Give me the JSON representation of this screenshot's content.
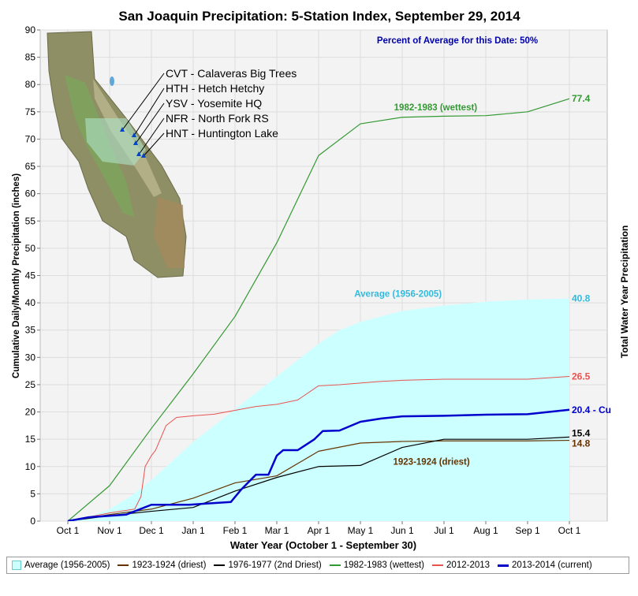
{
  "chart_data": {
    "type": "line",
    "title": "San Joaquin Precipitation: 5-Station Index, September 29, 2014",
    "subtitle": "Percent of Average for this Date: 50%",
    "xlabel": "Water Year (October 1 - September 30)",
    "ylabel": "Cumulative Daily/Monthly Precipitation (inches)",
    "ylabel_right": "Total Water Year Precipitation",
    "ylim": [
      0,
      90
    ],
    "yticks": [
      0,
      5,
      10,
      15,
      20,
      25,
      30,
      35,
      40,
      45,
      50,
      55,
      60,
      65,
      70,
      75,
      80,
      85,
      90
    ],
    "x_ticklabels": [
      "Oct 1",
      "Nov 1",
      "Dec 1",
      "Jan 1",
      "Feb 1",
      "Mar 1",
      "Apr 1",
      "May 1",
      "Jun 1",
      "Jul 1",
      "Aug 1",
      "Sep 1",
      "Oct 1"
    ],
    "grid": true,
    "legend_position": "bottom",
    "series": [
      {
        "name": "Average (1956-2005)",
        "kind": "area",
        "color": "#ccffff",
        "label_color": "#33bbdd",
        "x": [
          0,
          0.5,
          1,
          1.5,
          2,
          2.5,
          3,
          3.5,
          4,
          4.5,
          5,
          5.5,
          6,
          6.5,
          7,
          7.5,
          8,
          9,
          10,
          11,
          12
        ],
        "y": [
          0,
          0.8,
          2.2,
          4.5,
          7.5,
          11,
          14.5,
          17.5,
          20.5,
          23.5,
          26.5,
          29.5,
          32.5,
          35,
          36.5,
          37.5,
          38.5,
          39.5,
          40.2,
          40.6,
          40.8
        ],
        "end_label": "40.8",
        "annotation": "Average (1956-2005)"
      },
      {
        "name": "1923-1924 (driest)",
        "kind": "line",
        "color": "#663300",
        "width": 1.2,
        "x": [
          0,
          1,
          2,
          3,
          4,
          5,
          6,
          7,
          8,
          9,
          10,
          11,
          12
        ],
        "y": [
          0,
          1.2,
          2.2,
          4.2,
          7,
          8.3,
          12.8,
          14.3,
          14.6,
          14.7,
          14.7,
          14.7,
          14.8
        ],
        "end_label": "14.8",
        "annotation": "1923-1924 (driest)"
      },
      {
        "name": "1976-1977 (2nd Driest)",
        "kind": "line",
        "color": "#000000",
        "width": 1.2,
        "x": [
          0,
          1,
          2,
          3,
          4,
          5,
          6,
          7,
          8,
          9,
          10,
          11,
          12
        ],
        "y": [
          0,
          1,
          1.8,
          2.5,
          5.5,
          8,
          10,
          10.2,
          13.5,
          15,
          15,
          15,
          15.4
        ],
        "end_label": "15.4",
        "annotation": ""
      },
      {
        "name": "1982-1983 (wettest)",
        "kind": "line",
        "color": "#339933",
        "width": 1.2,
        "x": [
          0,
          1,
          2,
          3,
          4,
          5,
          6,
          7,
          8,
          9,
          10,
          11,
          12
        ],
        "y": [
          0,
          6.5,
          17,
          27,
          37.5,
          51,
          67,
          72.8,
          74,
          74.2,
          74.3,
          75,
          77.4
        ],
        "end_label": "77.4",
        "annotation": "1982-1983 (wettest)"
      },
      {
        "name": "2012-2013",
        "kind": "line",
        "color": "#e8524f",
        "width": 1,
        "x": [
          0,
          1,
          1.6,
          1.75,
          1.85,
          2,
          2.1,
          2.35,
          2.6,
          3,
          3.5,
          4,
          4.5,
          5,
          5.5,
          6,
          6.5,
          7,
          7.5,
          8,
          9,
          10,
          11,
          12
        ],
        "y": [
          0,
          1.5,
          2.2,
          4.5,
          10,
          12,
          13,
          17.5,
          19,
          19.3,
          19.6,
          20.3,
          21,
          21.4,
          22.2,
          24.8,
          25,
          25.3,
          25.6,
          25.8,
          26,
          26,
          26,
          26.5
        ],
        "end_label": "26.5",
        "annotation": ""
      },
      {
        "name": "2013-2014 (current)",
        "kind": "line",
        "color": "#0000cc",
        "width": 2.5,
        "x": [
          0,
          0.5,
          1.4,
          1.6,
          2,
          2.9,
          3.9,
          4.15,
          4.5,
          4.8,
          5,
          5.15,
          5.5,
          5.9,
          6.1,
          6.5,
          7,
          7.5,
          8,
          9,
          10,
          11,
          12
        ],
        "y": [
          0,
          0.7,
          1.2,
          1.8,
          3,
          3,
          3.5,
          5.8,
          8.5,
          8.5,
          12,
          13,
          13,
          15,
          16.5,
          16.6,
          18.2,
          18.8,
          19.2,
          19.3,
          19.5,
          19.6,
          20.4
        ],
        "end_label": "20.4 -  Cu",
        "annotation": ""
      }
    ]
  },
  "map": {
    "stations": [
      "CVT - Calaveras Big Trees",
      "HTH - Hetch Hetchy",
      "YSV - Yosemite HQ",
      "NFR - North Fork RS",
      "HNT - Huntington Lake"
    ]
  }
}
